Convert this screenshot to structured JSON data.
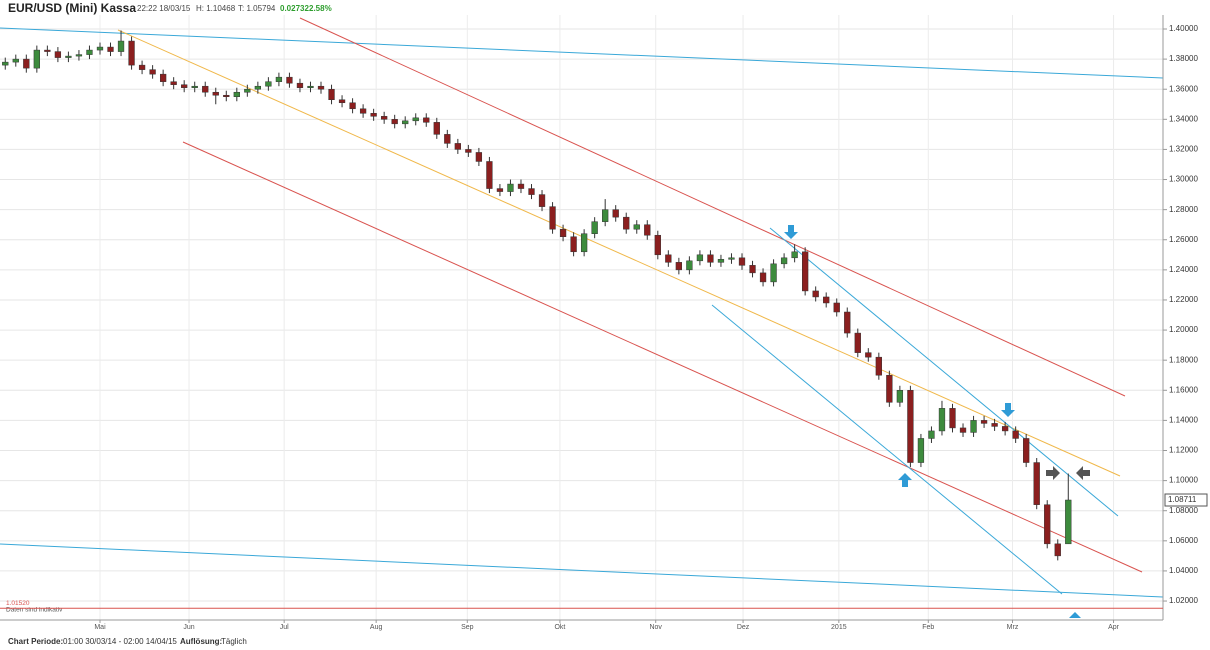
{
  "chart_data": {
    "type": "candlestick",
    "title": "EUR/USD (Mini) Kassa",
    "timestamp": "22:22 18/03/15",
    "high_text": "H: 1.10468",
    "low_text": "T: 1.05794",
    "change": "0.02732",
    "change_pct": "2.58%",
    "note": "Daten sind indikativ",
    "footer_period_label": "Chart Periode:",
    "footer_period": "01:00 30/03/14 - 02:00 14/04/15",
    "footer_res_label": "Auflösung:",
    "footer_res": "Täglich",
    "up_color": "#3d8b3d",
    "down_color": "#8b1f1f",
    "grid": true,
    "xlim": [
      -0.5,
      110
    ],
    "ylim": [
      1.0074,
      1.4093
    ],
    "xticks": [
      {
        "value": 9,
        "label": "Mai"
      },
      {
        "value": 17.46,
        "label": "Jun"
      },
      {
        "value": 26.5,
        "label": "Jul"
      },
      {
        "value": 35.24,
        "label": "Aug"
      },
      {
        "value": 43.9,
        "label": "Sep"
      },
      {
        "value": 52.7,
        "label": "Okt"
      },
      {
        "value": 61.8,
        "label": "Nov"
      },
      {
        "value": 70.1,
        "label": "Dez"
      },
      {
        "value": 79.2,
        "label": "2015"
      },
      {
        "value": 87.7,
        "label": "Feb"
      },
      {
        "value": 95.7,
        "label": "Mrz"
      },
      {
        "value": 105.3,
        "label": "Apr"
      }
    ],
    "yticks": [
      {
        "value": 1.4,
        "label": "1.40000"
      },
      {
        "value": 1.38,
        "label": "1.38000"
      },
      {
        "value": 1.36,
        "label": "1.36000"
      },
      {
        "value": 1.34,
        "label": "1.34000"
      },
      {
        "value": 1.32,
        "label": "1.32000"
      },
      {
        "value": 1.3,
        "label": "1.30000"
      },
      {
        "value": 1.28,
        "label": "1.28000"
      },
      {
        "value": 1.26,
        "label": "1.26000"
      },
      {
        "value": 1.24,
        "label": "1.24000"
      },
      {
        "value": 1.22,
        "label": "1.22000"
      },
      {
        "value": 1.2,
        "label": "1.20000"
      },
      {
        "value": 1.18,
        "label": "1.18000"
      },
      {
        "value": 1.16,
        "label": "1.16000"
      },
      {
        "value": 1.14,
        "label": "1.14000"
      },
      {
        "value": 1.12,
        "label": "1.12000"
      },
      {
        "value": 1.1,
        "label": "1.10000"
      },
      {
        "value": 1.08,
        "label": "1.08000"
      },
      {
        "value": 1.06,
        "label": "1.06000"
      },
      {
        "value": 1.04,
        "label": "1.04000"
      },
      {
        "value": 1.02,
        "label": "1.02000"
      }
    ],
    "reference_line": {
      "value": 1.0152,
      "label": "1.01520",
      "color": "#d9534f"
    },
    "open": [
      1.376,
      1.378,
      1.38,
      1.374,
      1.386,
      1.385,
      1.381,
      1.382,
      1.383,
      1.386,
      1.388,
      1.385,
      1.392,
      1.376,
      1.373,
      1.37,
      1.365,
      1.363,
      1.361,
      1.362,
      1.358,
      1.356,
      1.355,
      1.358,
      1.36,
      1.362,
      1.365,
      1.368,
      1.364,
      1.361,
      1.362,
      1.36,
      1.353,
      1.351,
      1.347,
      1.344,
      1.342,
      1.34,
      1.337,
      1.339,
      1.341,
      1.338,
      1.33,
      1.324,
      1.32,
      1.318,
      1.312,
      1.294,
      1.292,
      1.297,
      1.294,
      1.29,
      1.282,
      1.267,
      1.262,
      1.252,
      1.264,
      1.272,
      1.28,
      1.275,
      1.267,
      1.27,
      1.263,
      1.25,
      1.245,
      1.24,
      1.246,
      1.25,
      1.245,
      1.247,
      1.248,
      1.243,
      1.238,
      1.232,
      1.244,
      1.248,
      1.252,
      1.226,
      1.222,
      1.218,
      1.212,
      1.198,
      1.185,
      1.182,
      1.17,
      1.152,
      1.16,
      1.112,
      1.128,
      1.133,
      1.148,
      1.135,
      1.132,
      1.14,
      1.138,
      1.136,
      1.133,
      1.128,
      1.112,
      1.084,
      1.058,
      1.058
    ],
    "high": [
      1.381,
      1.383,
      1.383,
      1.389,
      1.389,
      1.388,
      1.385,
      1.386,
      1.389,
      1.391,
      1.391,
      1.399,
      1.395,
      1.379,
      1.376,
      1.373,
      1.368,
      1.366,
      1.365,
      1.365,
      1.361,
      1.359,
      1.361,
      1.363,
      1.365,
      1.368,
      1.371,
      1.371,
      1.367,
      1.365,
      1.365,
      1.363,
      1.356,
      1.354,
      1.35,
      1.347,
      1.345,
      1.343,
      1.342,
      1.344,
      1.344,
      1.341,
      1.333,
      1.327,
      1.323,
      1.321,
      1.315,
      1.297,
      1.3,
      1.3,
      1.297,
      1.293,
      1.285,
      1.27,
      1.265,
      1.267,
      1.275,
      1.287,
      1.283,
      1.278,
      1.273,
      1.273,
      1.266,
      1.253,
      1.248,
      1.249,
      1.253,
      1.253,
      1.25,
      1.251,
      1.251,
      1.246,
      1.241,
      1.247,
      1.251,
      1.257,
      1.255,
      1.229,
      1.225,
      1.221,
      1.215,
      1.201,
      1.188,
      1.185,
      1.173,
      1.163,
      1.163,
      1.131,
      1.136,
      1.153,
      1.151,
      1.138,
      1.143,
      1.143,
      1.141,
      1.139,
      1.136,
      1.131,
      1.115,
      1.087,
      1.061,
      1.10468
    ],
    "low": [
      1.373,
      1.375,
      1.371,
      1.371,
      1.382,
      1.378,
      1.378,
      1.379,
      1.38,
      1.383,
      1.382,
      1.382,
      1.373,
      1.37,
      1.367,
      1.362,
      1.36,
      1.358,
      1.358,
      1.355,
      1.35,
      1.352,
      1.352,
      1.355,
      1.357,
      1.359,
      1.362,
      1.361,
      1.358,
      1.358,
      1.357,
      1.35,
      1.348,
      1.344,
      1.341,
      1.339,
      1.337,
      1.334,
      1.334,
      1.336,
      1.335,
      1.327,
      1.321,
      1.317,
      1.315,
      1.309,
      1.291,
      1.289,
      1.289,
      1.291,
      1.287,
      1.279,
      1.264,
      1.259,
      1.249,
      1.249,
      1.261,
      1.269,
      1.272,
      1.264,
      1.264,
      1.26,
      1.247,
      1.242,
      1.237,
      1.237,
      1.243,
      1.242,
      1.242,
      1.244,
      1.24,
      1.235,
      1.229,
      1.229,
      1.241,
      1.245,
      1.223,
      1.219,
      1.215,
      1.209,
      1.195,
      1.182,
      1.179,
      1.167,
      1.149,
      1.149,
      1.109,
      1.109,
      1.125,
      1.13,
      1.132,
      1.129,
      1.129,
      1.135,
      1.133,
      1.13,
      1.125,
      1.109,
      1.081,
      1.055,
      1.047,
      1.05794
    ],
    "close": [
      1.378,
      1.38,
      1.374,
      1.386,
      1.385,
      1.381,
      1.382,
      1.383,
      1.386,
      1.388,
      1.385,
      1.392,
      1.376,
      1.373,
      1.37,
      1.365,
      1.363,
      1.361,
      1.362,
      1.358,
      1.356,
      1.355,
      1.358,
      1.36,
      1.362,
      1.365,
      1.368,
      1.364,
      1.361,
      1.362,
      1.36,
      1.353,
      1.351,
      1.347,
      1.344,
      1.342,
      1.34,
      1.337,
      1.339,
      1.341,
      1.338,
      1.33,
      1.324,
      1.32,
      1.318,
      1.312,
      1.294,
      1.292,
      1.297,
      1.294,
      1.29,
      1.282,
      1.267,
      1.262,
      1.252,
      1.264,
      1.272,
      1.28,
      1.275,
      1.267,
      1.27,
      1.263,
      1.25,
      1.245,
      1.24,
      1.246,
      1.25,
      1.245,
      1.247,
      1.248,
      1.243,
      1.238,
      1.232,
      1.244,
      1.248,
      1.252,
      1.226,
      1.222,
      1.218,
      1.212,
      1.198,
      1.185,
      1.182,
      1.17,
      1.152,
      1.16,
      1.112,
      1.128,
      1.133,
      1.148,
      1.135,
      1.132,
      1.14,
      1.138,
      1.136,
      1.133,
      1.128,
      1.112,
      1.084,
      1.058,
      1.05,
      1.08711
    ]
  }
}
